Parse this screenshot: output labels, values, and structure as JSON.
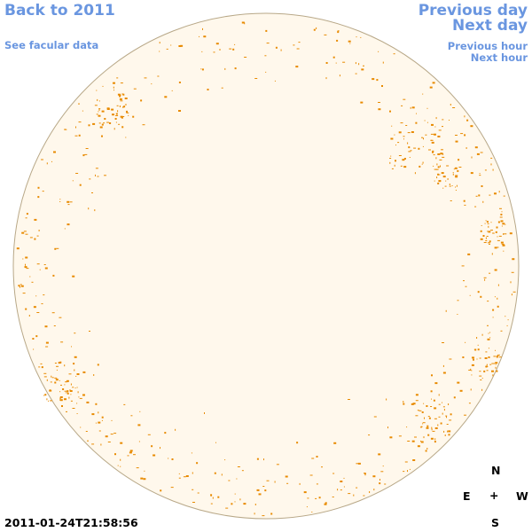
{
  "nav": {
    "back": "Back to 2011",
    "facular": "See facular data",
    "prev_day": "Previous day",
    "next_day": "Next day",
    "prev_hour": "Previous hour",
    "next_hour": "Next hour"
  },
  "timestamp": "2011-01-24T21:58:56",
  "compass": {
    "north": "N",
    "south": "S",
    "east": "E",
    "west": "W",
    "center": "+"
  },
  "colors": {
    "disk_fill": "#fff8ec",
    "disk_edge": "#b8a888",
    "feature": "#e88a00",
    "link": "#6a96e0"
  }
}
